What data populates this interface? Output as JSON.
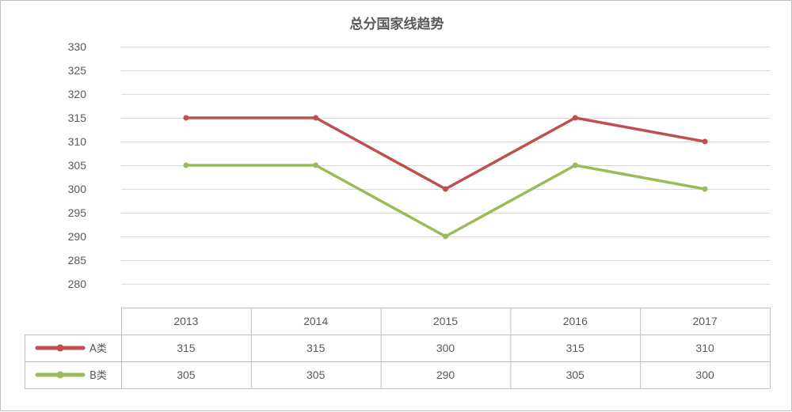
{
  "chart_data": {
    "type": "line",
    "title": "总分国家线趋势",
    "categories": [
      "2013",
      "2014",
      "2015",
      "2016",
      "2017"
    ],
    "series": [
      {
        "name": "A类",
        "values": [
          315,
          315,
          300,
          315,
          310
        ],
        "color": "#c0504d"
      },
      {
        "name": "B类",
        "values": [
          305,
          305,
          290,
          305,
          300
        ],
        "color": "#9bbb59"
      }
    ],
    "ylim": [
      280,
      330
    ],
    "ytick_step": 5,
    "grid": true,
    "legend": "data-table",
    "gridline_color": "#d9d9d9",
    "text_color": "#595959"
  }
}
